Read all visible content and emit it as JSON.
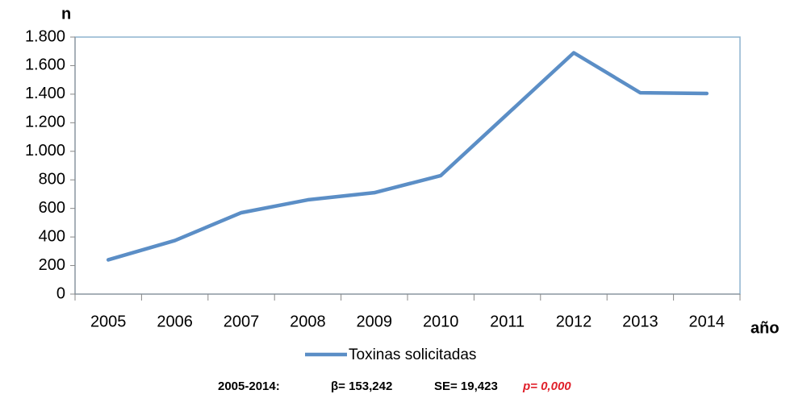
{
  "chart_data": {
    "type": "line",
    "y_label": "n",
    "x_label": "año",
    "categories": [
      "2005",
      "2006",
      "2007",
      "2008",
      "2009",
      "2010",
      "2011",
      "2012",
      "2013",
      "2014"
    ],
    "series": [
      {
        "name": "Toxinas solicitadas",
        "color": "#5b8ec6",
        "values": [
          240,
          375,
          570,
          660,
          710,
          830,
          1260,
          1690,
          1410,
          1405
        ]
      }
    ],
    "ylim": [
      0,
      1800
    ],
    "yticks": [
      0,
      200,
      400,
      600,
      800,
      {
        "value": 1000,
        "label": "1.000"
      },
      {
        "value": 1200,
        "label": "1.200"
      },
      {
        "value": 1400,
        "label": "1.400"
      },
      {
        "value": 1600,
        "label": "1.600"
      },
      {
        "value": 1800,
        "label": "1.800"
      }
    ],
    "legend": "bottom",
    "annotation": {
      "period": "2005-2014:",
      "beta": "β= 153,242",
      "se": "SE= 19,423",
      "p": "p= 0,000"
    }
  }
}
